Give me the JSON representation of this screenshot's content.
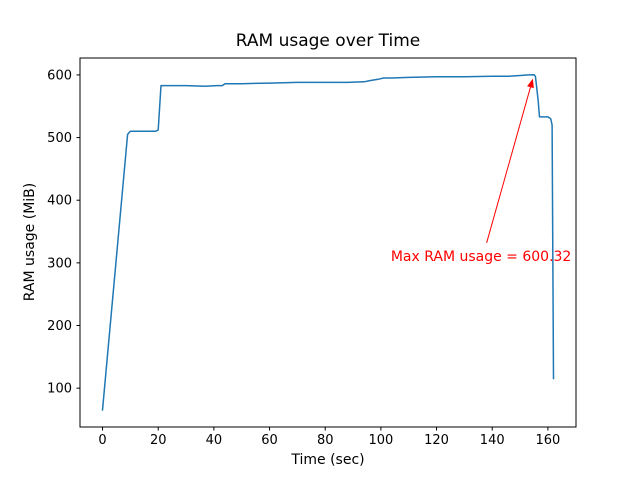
{
  "chart_data": {
    "type": "line",
    "title": "RAM usage over Time",
    "xlabel": "Time (sec)",
    "ylabel": "RAM usage (MiB)",
    "xlim": [
      -8.1,
      170.1
    ],
    "ylim": [
      38,
      627
    ],
    "xticks": [
      0,
      20,
      40,
      60,
      80,
      100,
      120,
      140,
      160
    ],
    "yticks": [
      100,
      200,
      300,
      400,
      500,
      600
    ],
    "grid": false,
    "legend": "none",
    "axis_color": "#000000",
    "line_color": "#1f77b4",
    "series": [
      {
        "name": "RAM usage",
        "x": [
          0,
          9,
          10,
          19,
          20,
          21,
          30,
          37,
          41,
          43,
          44,
          50,
          60,
          70,
          80,
          88,
          94,
          96,
          99,
          101,
          104,
          110,
          120,
          130,
          140,
          146,
          150,
          153,
          155,
          155.5,
          156.5,
          157,
          160,
          161,
          161.5,
          162
        ],
        "y": [
          65,
          505,
          510,
          510,
          512,
          583,
          583,
          582,
          583,
          583,
          586,
          586,
          587,
          588,
          588,
          588,
          589,
          591,
          593,
          595,
          595,
          596,
          597,
          597,
          598,
          598,
          599,
          600,
          600.32,
          598,
          560,
          533,
          533,
          530,
          520,
          115
        ]
      }
    ],
    "annotation": {
      "text": "Max RAM usage = 600.32",
      "color": "#ff0000",
      "max_value": 600.32,
      "xy": [
        155,
        600.32
      ],
      "arrow_tail_xy": [
        138,
        332
      ],
      "text_center_xy": [
        136,
        309
      ]
    }
  }
}
